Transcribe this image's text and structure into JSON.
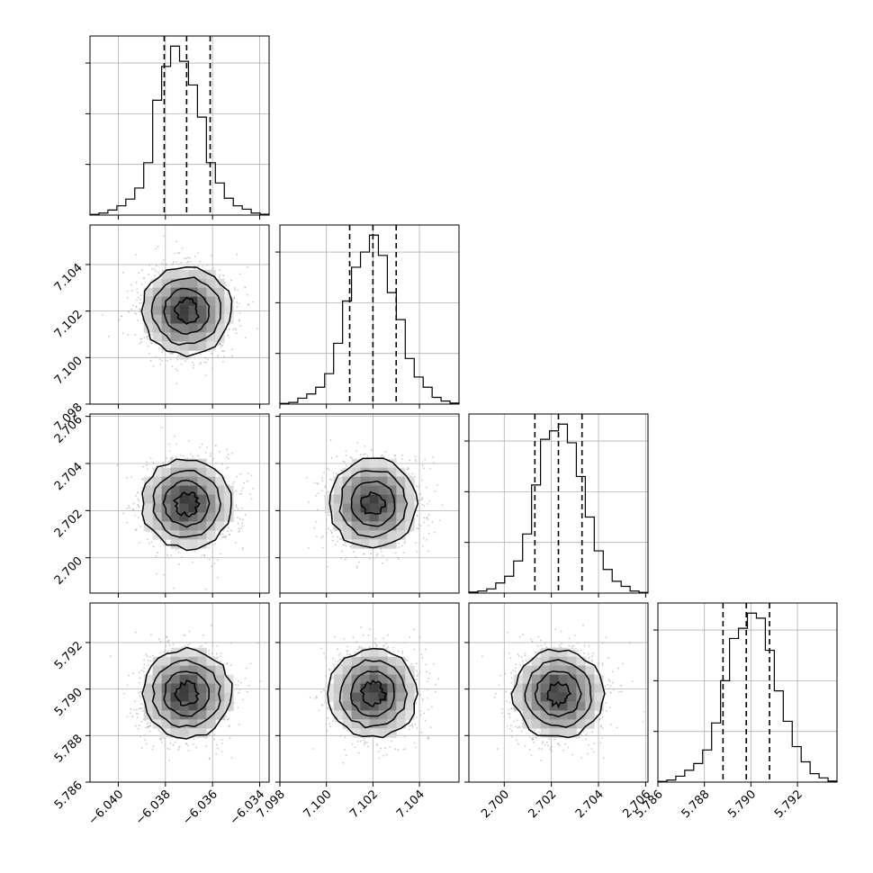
{
  "chart_data": {
    "type": "corner",
    "parameters": [
      {
        "tick_labels": [
          "−6.040",
          "−6.038",
          "−6.036",
          "−6.034"
        ],
        "tick_values": [
          -6.04,
          -6.038,
          -6.036,
          -6.034
        ],
        "range": [
          -6.0412,
          -6.0336
        ],
        "quantiles": [
          -6.03805,
          -6.0371,
          -6.0361
        ],
        "median": -6.0371,
        "histogram": [
          0.004,
          0.012,
          0.03,
          0.055,
          0.095,
          0.16,
          0.31,
          0.68,
          0.88,
          1.0,
          0.91,
          0.77,
          0.58,
          0.31,
          0.19,
          0.1,
          0.055,
          0.035,
          0.012,
          0.005
        ]
      },
      {
        "tick_labels": [
          "7.098",
          "7.100",
          "7.102",
          "7.104"
        ],
        "tick_values": [
          7.098,
          7.1,
          7.102,
          7.104
        ],
        "range": [
          7.098,
          7.1057
        ],
        "quantiles": [
          7.101,
          7.102,
          7.103
        ],
        "median": 7.102,
        "histogram": [
          0.004,
          0.01,
          0.035,
          0.06,
          0.1,
          0.18,
          0.36,
          0.61,
          0.81,
          0.9,
          1.0,
          0.88,
          0.66,
          0.5,
          0.27,
          0.16,
          0.1,
          0.04,
          0.018,
          0.006
        ]
      },
      {
        "tick_labels": [
          "2.700",
          "2.702",
          "2.704",
          "2.706"
        ],
        "tick_values": [
          2.7,
          2.702,
          2.704,
          2.706
        ],
        "range": [
          2.6985,
          2.7061
        ],
        "quantiles": [
          2.7013,
          2.7023,
          2.7033
        ],
        "median": 2.7023,
        "histogram": [
          0.006,
          0.012,
          0.025,
          0.06,
          0.1,
          0.19,
          0.35,
          0.64,
          0.91,
          0.96,
          1.0,
          0.89,
          0.69,
          0.45,
          0.25,
          0.14,
          0.07,
          0.04,
          0.012,
          0.004
        ]
      },
      {
        "tick_labels": [
          "5.786",
          "5.788",
          "5.790",
          "5.792"
        ],
        "tick_values": [
          5.786,
          5.788,
          5.79,
          5.792
        ],
        "range": [
          5.786,
          5.7937
        ],
        "quantiles": [
          5.7888,
          5.7898,
          5.7908
        ],
        "median": 5.7898,
        "histogram": [
          0.004,
          0.012,
          0.035,
          0.07,
          0.11,
          0.19,
          0.35,
          0.6,
          0.85,
          0.91,
          1.0,
          0.97,
          0.78,
          0.54,
          0.36,
          0.21,
          0.12,
          0.05,
          0.025,
          0.006
        ]
      }
    ],
    "pair_sigmas": [
      {
        "row": 1,
        "col": 0,
        "sx": 0.00095,
        "sy": 0.00095
      },
      {
        "row": 2,
        "col": 0,
        "sx": 0.00095,
        "sy": 0.00095
      },
      {
        "row": 2,
        "col": 1,
        "sx": 0.00095,
        "sy": 0.00095
      },
      {
        "row": 3,
        "col": 0,
        "sx": 0.00095,
        "sy": 0.00095
      },
      {
        "row": 3,
        "col": 1,
        "sx": 0.00095,
        "sy": 0.00095
      },
      {
        "row": 3,
        "col": 2,
        "sx": 0.00095,
        "sy": 0.00095
      }
    ],
    "contour_levels_sigma": [
      0.5,
      1.0,
      1.5,
      2.0
    ],
    "grid": true,
    "hist_line_color": "#000000",
    "contour_color": "#000000",
    "density_colormap": [
      "#ffffff",
      "#000000"
    ],
    "scatter_point_color": "#b3b3b3"
  }
}
